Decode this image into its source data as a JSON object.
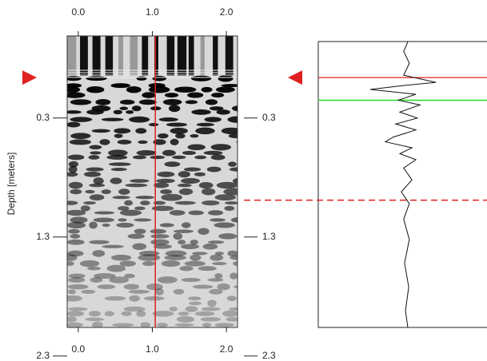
{
  "chart_data": {
    "type": "radargram",
    "y_label": "Depth [meters]",
    "xlim": [
      -0.15,
      2.15
    ],
    "xticks": [
      {
        "value": 0,
        "label": "0.0"
      },
      {
        "value": 1,
        "label": "1.0"
      },
      {
        "value": 2,
        "label": "2.0"
      }
    ],
    "ylim": [
      -0.39,
      2.06
    ],
    "yticks": [
      0.3,
      1.3,
      2.3
    ],
    "cursor_x": 1.04,
    "cursor_color": "#e02020",
    "marker_depth": -0.04,
    "marker_color": "#e02020",
    "pick_depth": 0.99,
    "trace": {
      "depth": [
        -0.34,
        -0.26,
        -0.16,
        -0.06,
        0.0,
        0.03,
        0.06,
        0.1,
        0.15,
        0.19,
        0.25,
        0.3,
        0.35,
        0.4,
        0.46,
        0.5,
        0.55,
        0.6,
        0.65,
        0.72,
        0.82,
        0.92,
        1.02,
        1.15,
        1.32,
        1.52,
        1.72,
        1.92,
        2.06
      ],
      "amplitude": [
        0,
        -0.14,
        0.05,
        -0.14,
        0.95,
        -0.27,
        -1.27,
        0.27,
        -0.32,
        0.41,
        -0.27,
        0.32,
        -0.41,
        0.27,
        -0.49,
        -0.76,
        0.14,
        -0.27,
        0.27,
        -0.14,
        0.14,
        -0.22,
        0.05,
        -0.14,
        0.05,
        -0.11,
        0.03,
        -0.08,
        0
      ],
      "amplitude_lim": [
        -3,
        3
      ],
      "window_depth": 0.15,
      "window_color": "#22dd22"
    }
  }
}
